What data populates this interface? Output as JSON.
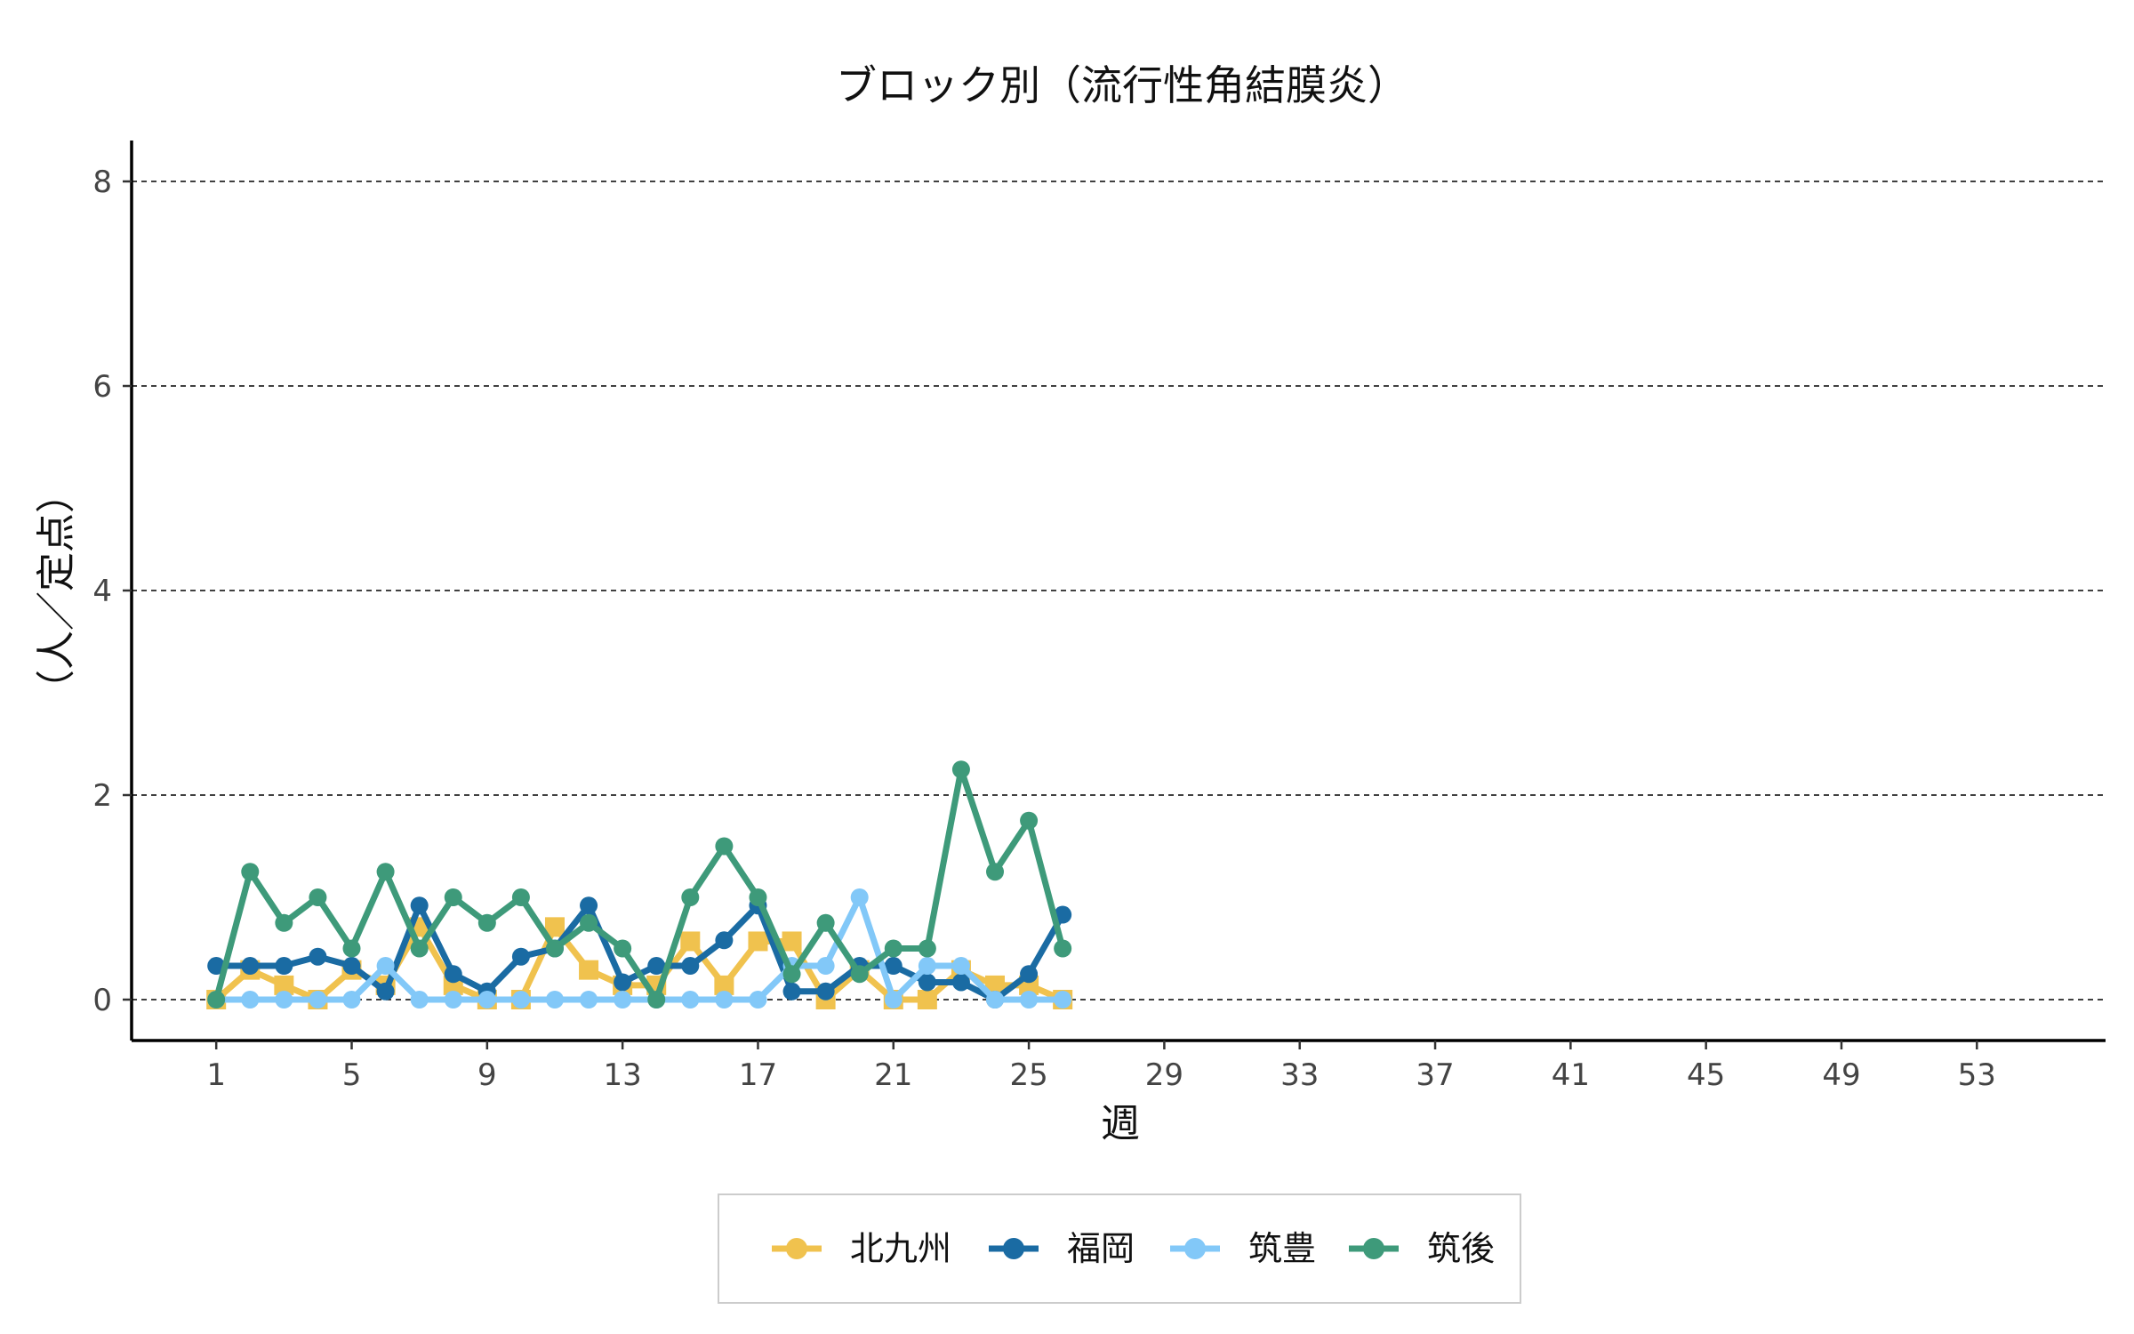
{
  "chart_data": {
    "type": "line",
    "title": "ブロック別（流行性角結膜炎）",
    "xlabel": "週",
    "ylabel": "（人／定点）",
    "xlim": [
      -1.5,
      56.8
    ],
    "ylim": [
      -0.4,
      8.4
    ],
    "x_ticks": [
      1,
      5,
      9,
      13,
      17,
      21,
      25,
      29,
      33,
      37,
      41,
      45,
      49,
      53
    ],
    "y_ticks": [
      0,
      2,
      4,
      6,
      8
    ],
    "grid": "horizontal dashed",
    "legend_position": "bottom",
    "series": [
      {
        "name": "北九州",
        "color": "#F0C24E",
        "marker": "square",
        "x": [
          1,
          2,
          3,
          4,
          5,
          6,
          7,
          8,
          9,
          10,
          11,
          12,
          13,
          14,
          15,
          16,
          17,
          18,
          19,
          20,
          21,
          22,
          23,
          24,
          25,
          26
        ],
        "values": [
          0,
          0.29,
          0.14,
          0,
          0.29,
          0.14,
          0.71,
          0.14,
          0,
          0,
          0.71,
          0.29,
          0.14,
          0.14,
          0.57,
          0.14,
          0.57,
          0.57,
          0,
          0.29,
          0,
          0,
          0.29,
          0.14,
          0.14,
          0
        ]
      },
      {
        "name": "福岡",
        "color": "#1A6BA3",
        "marker": "circle",
        "x": [
          1,
          2,
          3,
          4,
          5,
          6,
          7,
          8,
          9,
          10,
          11,
          12,
          13,
          14,
          15,
          16,
          17,
          18,
          19,
          20,
          21,
          22,
          23,
          24,
          25,
          26
        ],
        "values": [
          0.33,
          0.33,
          0.33,
          0.42,
          0.33,
          0.08,
          0.92,
          0.25,
          0.08,
          0.42,
          0.5,
          0.92,
          0.17,
          0.33,
          0.33,
          0.58,
          0.92,
          0.08,
          0.08,
          0.33,
          0.33,
          0.17,
          0.17,
          0,
          0.25,
          0.83
        ]
      },
      {
        "name": "筑豊",
        "color": "#82C8F8",
        "marker": "circle",
        "x": [
          1,
          2,
          3,
          4,
          5,
          6,
          7,
          8,
          9,
          10,
          11,
          12,
          13,
          14,
          15,
          16,
          17,
          18,
          19,
          20,
          21,
          22,
          23,
          24,
          25,
          26
        ],
        "values": [
          0,
          0,
          0,
          0,
          0,
          0.33,
          0,
          0,
          0,
          0,
          0,
          0,
          0,
          0,
          0,
          0,
          0,
          0.33,
          0.33,
          1.0,
          0,
          0.33,
          0.33,
          0,
          0,
          0
        ]
      },
      {
        "name": "筑後",
        "color": "#3E9A7A",
        "marker": "circle",
        "x": [
          1,
          2,
          3,
          4,
          5,
          6,
          7,
          8,
          9,
          10,
          11,
          12,
          13,
          14,
          15,
          16,
          17,
          18,
          19,
          20,
          21,
          22,
          23,
          24,
          25,
          26
        ],
        "values": [
          0,
          1.25,
          0.75,
          1.0,
          0.5,
          1.25,
          0.5,
          1.0,
          0.75,
          1.0,
          0.5,
          0.75,
          0.5,
          0,
          1.0,
          1.5,
          1.0,
          0.25,
          0.75,
          0.25,
          0.5,
          0.5,
          2.25,
          1.25,
          1.75,
          0.5
        ]
      }
    ]
  }
}
